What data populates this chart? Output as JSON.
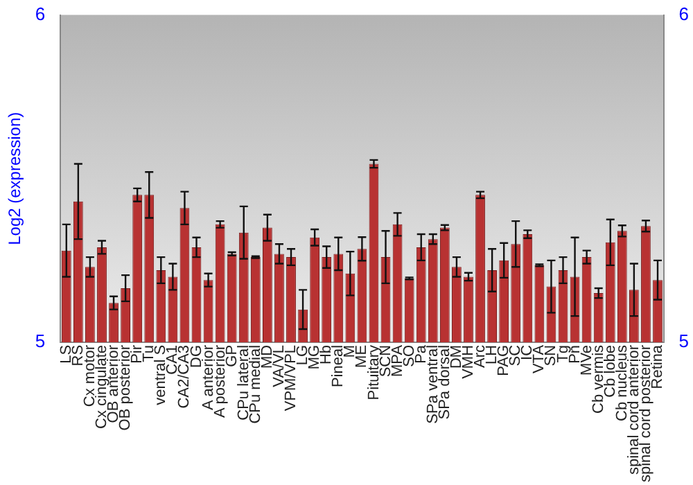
{
  "chart_data": {
    "type": "bar",
    "ylabel": "Log2 (expression)",
    "categories": [
      "LS",
      "RS",
      "Cx motor",
      "Cx cingulate",
      "OB anterior",
      "OB posterior",
      "Pir",
      "Tu",
      "ventral S",
      "CA1",
      "CA2/CA3",
      "DG",
      "A anterior",
      "A posterior",
      "GP",
      "CPu lateral",
      "CPu medial",
      "MD",
      "VA/VL",
      "VPM/VPL",
      "LG",
      "MG",
      "Hb",
      "Pineal",
      "M",
      "ME",
      "Pituitary",
      "SCN",
      "MPA",
      "SO",
      "Pa",
      "SPa ventral",
      "SPa dorsal",
      "DM",
      "VMH",
      "Arc",
      "LH",
      "PAG",
      "SC",
      "IC",
      "VTA",
      "SN",
      "Tg",
      "Pn",
      "MVe",
      "Cb vermis",
      "Cb lobe",
      "Cb nucleus",
      "spinal cord anterior",
      "spinal cord posterior",
      "Retina"
    ],
    "values": [
      5.28,
      5.43,
      5.23,
      5.29,
      5.12,
      5.165,
      5.45,
      5.45,
      5.22,
      5.2,
      5.41,
      5.29,
      5.19,
      5.36,
      5.27,
      5.335,
      5.26,
      5.35,
      5.27,
      5.26,
      5.1,
      5.32,
      5.26,
      5.27,
      5.21,
      5.285,
      5.545,
      5.26,
      5.36,
      5.195,
      5.29,
      5.315,
      5.35,
      5.23,
      5.2,
      5.45,
      5.22,
      5.25,
      5.3,
      5.33,
      5.235,
      5.17,
      5.22,
      5.2,
      5.26,
      5.15,
      5.305,
      5.34,
      5.16,
      5.355,
      5.19
    ],
    "errors": [
      0.08,
      0.115,
      0.03,
      0.02,
      0.02,
      0.04,
      0.02,
      0.07,
      0.04,
      0.04,
      0.05,
      0.03,
      0.02,
      0.01,
      0.005,
      0.08,
      0.003,
      0.04,
      0.03,
      0.025,
      0.06,
      0.025,
      0.033,
      0.05,
      0.067,
      0.036,
      0.012,
      0.08,
      0.035,
      0.003,
      0.04,
      0.015,
      0.008,
      0.03,
      0.012,
      0.01,
      0.065,
      0.053,
      0.07,
      0.012,
      0.003,
      0.08,
      0.04,
      0.12,
      0.02,
      0.015,
      0.07,
      0.017,
      0.08,
      0.017,
      0.06
    ],
    "color": "#b83232",
    "ylim": [
      5,
      6
    ],
    "yticks": [
      5,
      6
    ],
    "y2lim": [
      5,
      6
    ],
    "y2ticks": [
      5,
      6
    ],
    "grid": false,
    "legend": false
  }
}
